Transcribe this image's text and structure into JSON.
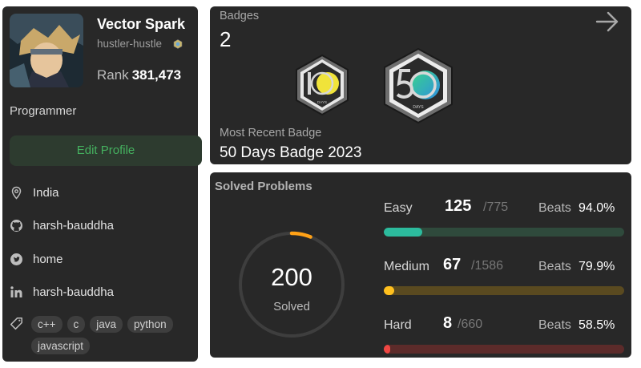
{
  "profile": {
    "display_name": "Vector Spark",
    "username": "hustler-hustle",
    "rank_label": "Rank",
    "rank_value": "381,473",
    "occupation": "Programmer",
    "edit_button_label": "Edit Profile",
    "location": "India",
    "github": "harsh-bauddha",
    "twitter": "home",
    "linkedin": "harsh-bauddha",
    "skills": [
      "c++",
      "c",
      "java",
      "python",
      "javascript"
    ]
  },
  "badges": {
    "label": "Badges",
    "count": "2",
    "items": [
      {
        "name": "100-days-badge",
        "icon": "hexagon-badge-100-days",
        "digits": "100",
        "caption": "DAYS"
      },
      {
        "name": "50-days-badge",
        "icon": "hexagon-badge-50-days",
        "digits": "50",
        "caption": "DAYS"
      }
    ],
    "recent_label": "Most Recent Badge",
    "recent_name": "50 Days Badge 2023"
  },
  "solved": {
    "title": "Solved Problems",
    "total": "200",
    "total_label": "Solved",
    "ring_progress": 0.06,
    "difficulties": [
      {
        "name": "Easy",
        "solved": "125",
        "total": "/775",
        "beats_label": "Beats",
        "beats": "94.0%",
        "progress": 0.161,
        "color": "#2cbb9d",
        "track": "#2f4a3c"
      },
      {
        "name": "Medium",
        "solved": "67",
        "total": "/1586",
        "beats_label": "Beats",
        "beats": "79.9%",
        "progress": 0.042,
        "color": "#ffc01e",
        "track": "#5a4a20"
      },
      {
        "name": "Hard",
        "solved": "8",
        "total": "/660",
        "beats_label": "Beats",
        "beats": "58.5%",
        "progress": 0.012,
        "color": "#ef4743",
        "track": "#5c2b2a"
      }
    ]
  },
  "colors": {
    "panel": "#282828",
    "accent_green": "#45b15f",
    "ring_orange": "#ffa116"
  }
}
